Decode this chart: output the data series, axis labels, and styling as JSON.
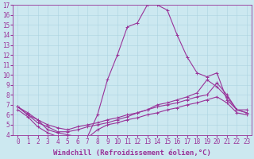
{
  "background_color": "#cce8f0",
  "line_color": "#993399",
  "marker": "+",
  "markersize": 3,
  "linewidth": 0.8,
  "xlabel": "Windchill (Refroidissement éolien,°C)",
  "xlabel_fontsize": 6.5,
  "tick_fontsize": 5.5,
  "xlim": [
    -0.5,
    23.5
  ],
  "ylim": [
    4,
    17
  ],
  "yticks": [
    4,
    5,
    6,
    7,
    8,
    9,
    10,
    11,
    12,
    13,
    14,
    15,
    16,
    17
  ],
  "xticks": [
    0,
    1,
    2,
    3,
    4,
    5,
    6,
    7,
    8,
    9,
    10,
    11,
    12,
    13,
    14,
    15,
    16,
    17,
    18,
    19,
    20,
    21,
    22,
    23
  ],
  "curves": [
    {
      "x": [
        0,
        1,
        2,
        3,
        4,
        5,
        6,
        7,
        8,
        9,
        10,
        11,
        12,
        13,
        14,
        15,
        16,
        17,
        18,
        19,
        20,
        21,
        22,
        23
      ],
      "y": [
        6.8,
        6.0,
        5.5,
        4.5,
        4.2,
        4.0,
        3.8,
        3.8,
        6.0,
        9.5,
        12.0,
        14.8,
        15.2,
        17.0,
        17.0,
        16.5,
        14.0,
        11.8,
        10.2,
        9.8,
        10.2,
        7.5,
        6.5,
        6.5
      ]
    },
    {
      "x": [
        0,
        1,
        2,
        3,
        4,
        5,
        6,
        7,
        8,
        9,
        10,
        11,
        12,
        13,
        14,
        15,
        16,
        17,
        18,
        19,
        20,
        21,
        22,
        23
      ],
      "y": [
        6.8,
        6.0,
        5.2,
        4.8,
        4.3,
        4.3,
        4.5,
        4.8,
        5.0,
        5.2,
        5.5,
        5.8,
        6.2,
        6.5,
        7.0,
        7.2,
        7.5,
        7.8,
        8.2,
        9.5,
        8.8,
        7.8,
        6.5,
        6.2
      ]
    },
    {
      "x": [
        0,
        1,
        2,
        3,
        4,
        5,
        6,
        7,
        8,
        9,
        10,
        11,
        12,
        13,
        14,
        15,
        16,
        17,
        18,
        19,
        20,
        21,
        22,
        23
      ],
      "y": [
        6.8,
        6.2,
        5.5,
        5.0,
        4.7,
        4.5,
        4.8,
        5.0,
        5.2,
        5.5,
        5.7,
        6.0,
        6.2,
        6.5,
        6.8,
        7.0,
        7.2,
        7.5,
        7.8,
        8.0,
        9.2,
        8.0,
        6.5,
        6.2
      ]
    },
    {
      "x": [
        0,
        1,
        2,
        3,
        4,
        5,
        6,
        7,
        8,
        9,
        10,
        11,
        12,
        13,
        14,
        15,
        16,
        17,
        18,
        19,
        20,
        21,
        22,
        23
      ],
      "y": [
        6.5,
        5.8,
        4.8,
        4.2,
        3.8,
        3.7,
        3.7,
        3.7,
        4.5,
        5.0,
        5.2,
        5.5,
        5.7,
        6.0,
        6.2,
        6.5,
        6.7,
        7.0,
        7.2,
        7.5,
        7.8,
        7.2,
        6.2,
        6.0
      ]
    }
  ]
}
